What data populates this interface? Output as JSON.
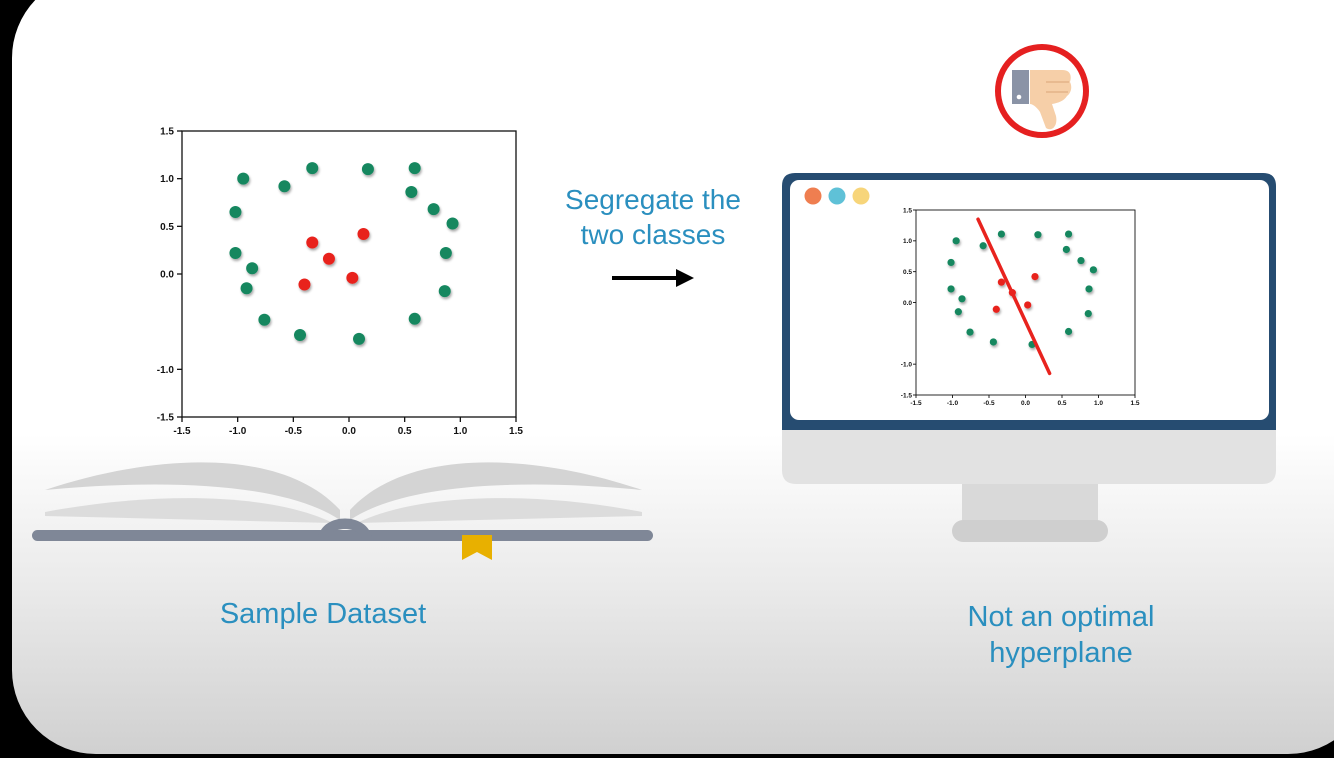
{
  "captions": {
    "sample_dataset": "Sample Dataset",
    "instruction": "Segregate the two classes",
    "result": "Not an optimal hyperplane"
  },
  "icons": {
    "arrow": "arrow-right-icon",
    "verdict": "thumbs-down-icon",
    "book": "open-book-icon",
    "bookmark": "bookmark-icon",
    "monitor": "monitor-icon"
  },
  "colors": {
    "class_outer": "#12875f",
    "class_inner": "#e8231e",
    "hyperplane": "#e8231e",
    "caption": "#2a8fbf",
    "verdict_ring": "#e52020",
    "monitor_frame": "#264c71",
    "window_dots": [
      "#ef7e50",
      "#5fc1d7",
      "#f7d57a"
    ]
  },
  "chart_data": [
    {
      "type": "scatter",
      "x_ticks": [
        "-1.5",
        "-1.0",
        "-0.5",
        "0.0",
        "0.5",
        "1.0",
        "1.5"
      ],
      "y_ticks": [
        "1.5",
        "1.0",
        "0.5",
        "0.0",
        "-1.0",
        "-1.5"
      ],
      "xlim": [
        -1.5,
        1.5
      ],
      "ylim": [
        -1.5,
        1.5
      ],
      "series": [
        {
          "class": "outer",
          "points": [
            [
              -0.95,
              1.0
            ],
            [
              -0.58,
              0.92
            ],
            [
              -0.33,
              1.11
            ],
            [
              0.17,
              1.1
            ],
            [
              0.59,
              1.11
            ],
            [
              0.56,
              0.86
            ],
            [
              0.76,
              0.68
            ],
            [
              0.93,
              0.53
            ],
            [
              -1.02,
              0.65
            ],
            [
              -1.02,
              0.22
            ],
            [
              -0.87,
              0.06
            ],
            [
              -0.92,
              -0.15
            ],
            [
              0.87,
              0.22
            ],
            [
              0.86,
              -0.18
            ],
            [
              -0.76,
              -0.48
            ],
            [
              -0.44,
              -0.64
            ],
            [
              0.09,
              -0.68
            ],
            [
              0.59,
              -0.47
            ]
          ]
        },
        {
          "class": "inner",
          "points": [
            [
              -0.33,
              0.33
            ],
            [
              -0.18,
              0.16
            ],
            [
              0.13,
              0.42
            ],
            [
              -0.4,
              -0.11
            ],
            [
              0.03,
              -0.04
            ]
          ]
        }
      ]
    },
    {
      "type": "scatter",
      "x_ticks": [
        "-1.5",
        "-1.0",
        "-0.5",
        "0.0",
        "0.5",
        "1.0",
        "1.5"
      ],
      "y_ticks": [
        "1.5",
        "1.0",
        "0.5",
        "0.0",
        "-1.0",
        "-1.5"
      ],
      "xlim": [
        -1.5,
        1.5
      ],
      "ylim": [
        -1.5,
        1.5
      ],
      "hyperplane": [
        [
          -0.65,
          1.35
        ],
        [
          0.33,
          -1.15
        ]
      ],
      "series": [
        {
          "class": "outer",
          "points": [
            [
              -0.95,
              1.0
            ],
            [
              -0.58,
              0.92
            ],
            [
              -0.33,
              1.11
            ],
            [
              0.17,
              1.1
            ],
            [
              0.59,
              1.11
            ],
            [
              0.56,
              0.86
            ],
            [
              0.76,
              0.68
            ],
            [
              0.93,
              0.53
            ],
            [
              -1.02,
              0.65
            ],
            [
              -1.02,
              0.22
            ],
            [
              -0.87,
              0.06
            ],
            [
              -0.92,
              -0.15
            ],
            [
              0.87,
              0.22
            ],
            [
              0.86,
              -0.18
            ],
            [
              -0.76,
              -0.48
            ],
            [
              -0.44,
              -0.64
            ],
            [
              0.09,
              -0.68
            ],
            [
              0.59,
              -0.47
            ]
          ]
        },
        {
          "class": "inner",
          "points": [
            [
              -0.33,
              0.33
            ],
            [
              -0.18,
              0.16
            ],
            [
              0.13,
              0.42
            ],
            [
              -0.4,
              -0.11
            ],
            [
              0.03,
              -0.04
            ]
          ]
        }
      ]
    }
  ]
}
